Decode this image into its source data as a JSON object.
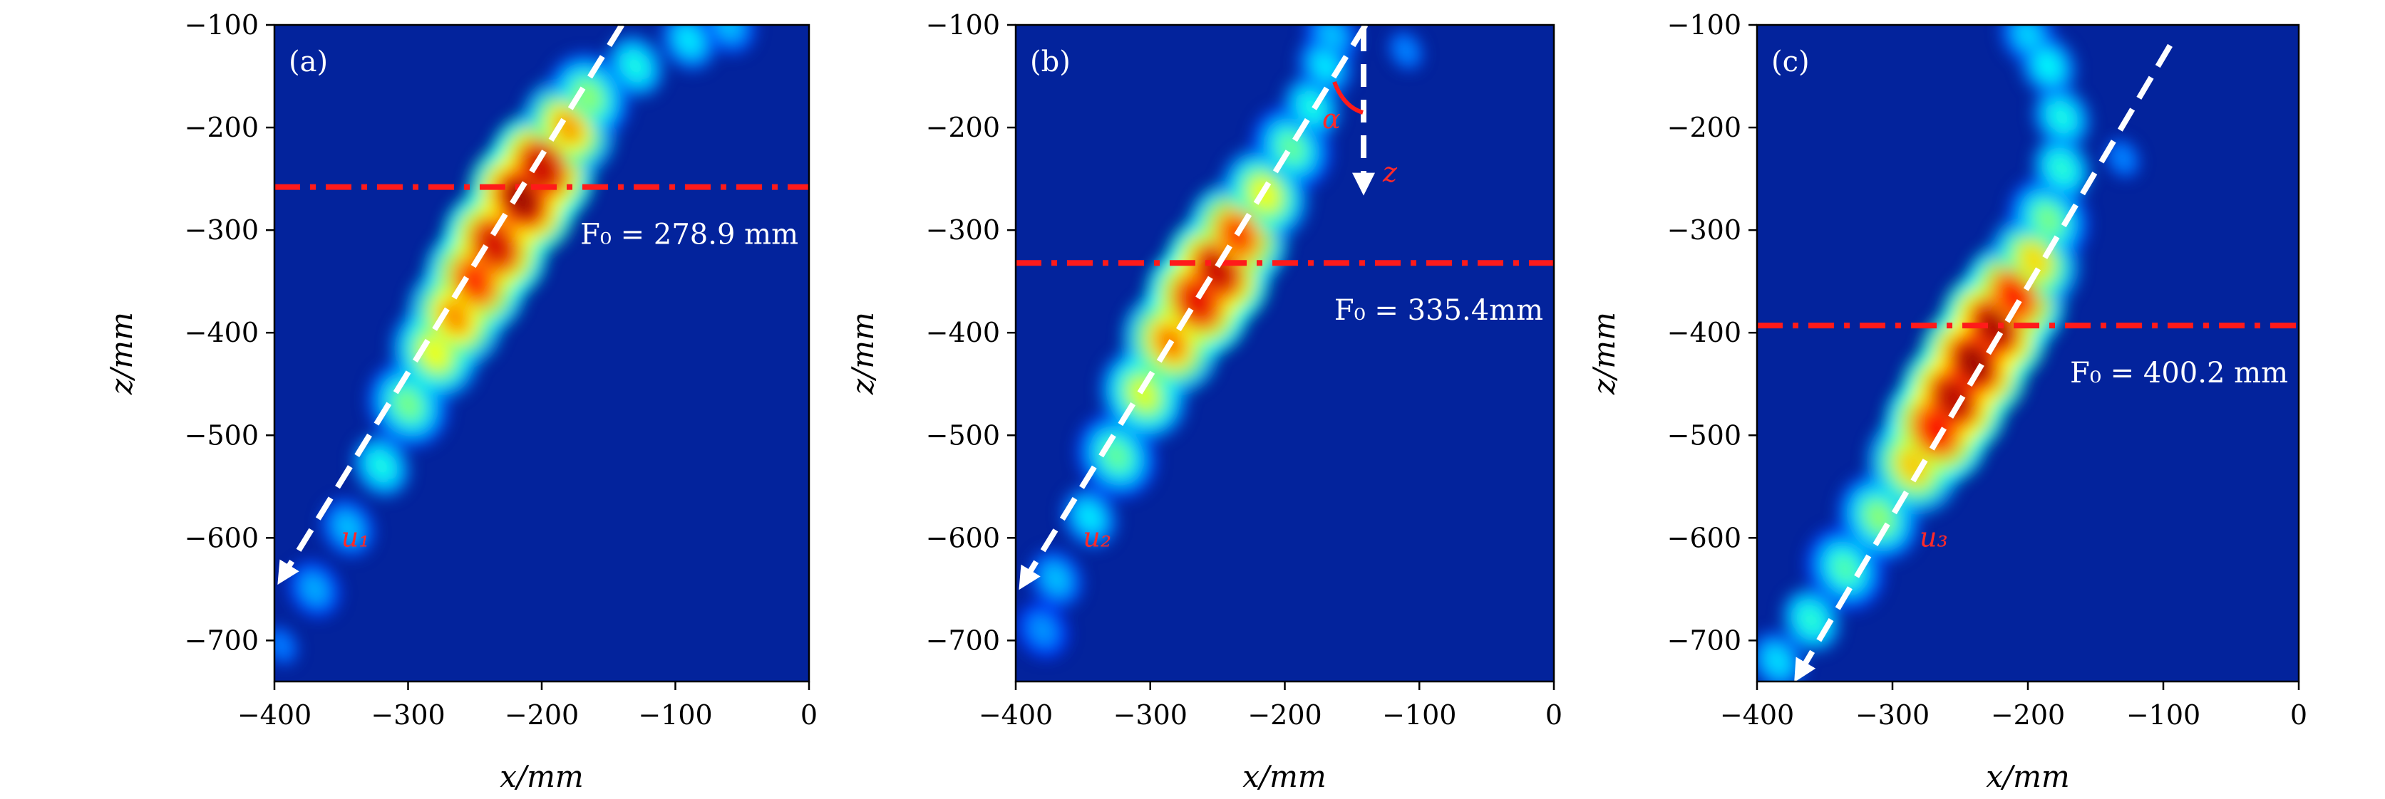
{
  "chart_data": [
    {
      "type": "heatmap",
      "panel_label": "(a)",
      "xlabel": "x/mm",
      "ylabel": "z/mm",
      "xlim": [
        -400,
        0
      ],
      "ylim": [
        -740,
        -100
      ],
      "xticks": [
        -400,
        -300,
        -200,
        -100,
        0
      ],
      "yticks": [
        -100,
        -200,
        -300,
        -400,
        -500,
        -600,
        -700
      ],
      "xtick_labels": [
        "−400",
        "−300",
        "−200",
        "−100",
        "0"
      ],
      "ytick_labels": [
        "−100",
        "−200",
        "−300",
        "−400",
        "−500",
        "−600",
        "−700"
      ],
      "focus_line_z": -258,
      "focus_label": "F₀ = 278.9 mm",
      "velocity_label": "u₁",
      "velocity_label_pos": [
        -350,
        -600
      ],
      "arrow": {
        "start": [
          -140,
          -100
        ],
        "end": [
          -395,
          -640
        ]
      },
      "plume": [
        {
          "x": -395,
          "z": -705,
          "intensity": 0.25
        },
        {
          "x": -370,
          "z": -650,
          "intensity": 0.3
        },
        {
          "x": -345,
          "z": -590,
          "intensity": 0.32
        },
        {
          "x": -320,
          "z": -530,
          "intensity": 0.4
        },
        {
          "x": -300,
          "z": -470,
          "intensity": 0.5
        },
        {
          "x": -280,
          "z": -420,
          "intensity": 0.62
        },
        {
          "x": -265,
          "z": -385,
          "intensity": 0.74
        },
        {
          "x": -250,
          "z": -350,
          "intensity": 0.84
        },
        {
          "x": -235,
          "z": -315,
          "intensity": 0.92
        },
        {
          "x": -215,
          "z": -270,
          "intensity": 0.98
        },
        {
          "x": -200,
          "z": -240,
          "intensity": 0.93
        },
        {
          "x": -180,
          "z": -200,
          "intensity": 0.72
        },
        {
          "x": -165,
          "z": -170,
          "intensity": 0.52
        },
        {
          "x": -130,
          "z": -140,
          "intensity": 0.4
        },
        {
          "x": -90,
          "z": -115,
          "intensity": 0.36
        },
        {
          "x": -60,
          "z": -100,
          "intensity": 0.32
        }
      ]
    },
    {
      "type": "heatmap",
      "panel_label": "(b)",
      "xlabel": "x/mm",
      "ylabel": "z/mm",
      "xlim": [
        -400,
        0
      ],
      "ylim": [
        -740,
        -100
      ],
      "xticks": [
        -400,
        -300,
        -200,
        -100,
        0
      ],
      "yticks": [
        -100,
        -200,
        -300,
        -400,
        -500,
        -600,
        -700
      ],
      "xtick_labels": [
        "−400",
        "−300",
        "−200",
        "−100",
        "0"
      ],
      "ytick_labels": [
        "−100",
        "−200",
        "−300",
        "−400",
        "−500",
        "−600",
        "−700"
      ],
      "focus_line_z": -332,
      "focus_label": "F₀ = 335.4mm",
      "velocity_label": "u₂",
      "velocity_label_pos": [
        -350,
        -600
      ],
      "arrow": {
        "start": [
          -140,
          -100
        ],
        "end": [
          -395,
          -645
        ]
      },
      "angle_label": "α",
      "z_axis_label": "z",
      "plume": [
        {
          "x": -380,
          "z": -690,
          "intensity": 0.28
        },
        {
          "x": -370,
          "z": -640,
          "intensity": 0.32
        },
        {
          "x": -345,
          "z": -580,
          "intensity": 0.36
        },
        {
          "x": -325,
          "z": -520,
          "intensity": 0.48
        },
        {
          "x": -305,
          "z": -460,
          "intensity": 0.6
        },
        {
          "x": -285,
          "z": -410,
          "intensity": 0.76
        },
        {
          "x": -265,
          "z": -370,
          "intensity": 0.9
        },
        {
          "x": -250,
          "z": -340,
          "intensity": 0.93
        },
        {
          "x": -235,
          "z": -305,
          "intensity": 0.82
        },
        {
          "x": -215,
          "z": -265,
          "intensity": 0.62
        },
        {
          "x": -195,
          "z": -220,
          "intensity": 0.48
        },
        {
          "x": -180,
          "z": -180,
          "intensity": 0.4
        },
        {
          "x": -170,
          "z": -140,
          "intensity": 0.36
        },
        {
          "x": -165,
          "z": -110,
          "intensity": 0.32
        },
        {
          "x": -110,
          "z": -125,
          "intensity": 0.26
        }
      ]
    },
    {
      "type": "heatmap",
      "panel_label": "(c)",
      "xlabel": "x/mm",
      "ylabel": "z/mm",
      "xlim": [
        -400,
        0
      ],
      "ylim": [
        -740,
        -100
      ],
      "xticks": [
        -400,
        -300,
        -200,
        -100,
        0
      ],
      "yticks": [
        -100,
        -200,
        -300,
        -400,
        -500,
        -600,
        -700
      ],
      "xtick_labels": [
        "−400",
        "−300",
        "−200",
        "−100",
        "0"
      ],
      "ytick_labels": [
        "−100",
        "−200",
        "−300",
        "−400",
        "−500",
        "−600",
        "−700"
      ],
      "focus_line_z": -393,
      "focus_label": "F₀ = 400.2 mm",
      "velocity_label": "u₃",
      "velocity_label_pos": [
        -280,
        -600
      ],
      "arrow": {
        "start": [
          -95,
          -120
        ],
        "end": [
          -370,
          -735
        ]
      },
      "plume": [
        {
          "x": -385,
          "z": -720,
          "intensity": 0.35
        },
        {
          "x": -360,
          "z": -680,
          "intensity": 0.42
        },
        {
          "x": -335,
          "z": -630,
          "intensity": 0.46
        },
        {
          "x": -310,
          "z": -580,
          "intensity": 0.52
        },
        {
          "x": -285,
          "z": -530,
          "intensity": 0.68
        },
        {
          "x": -268,
          "z": -495,
          "intensity": 0.88
        },
        {
          "x": -255,
          "z": -465,
          "intensity": 0.95
        },
        {
          "x": -240,
          "z": -430,
          "intensity": 0.98
        },
        {
          "x": -225,
          "z": -395,
          "intensity": 0.96
        },
        {
          "x": -210,
          "z": -365,
          "intensity": 0.86
        },
        {
          "x": -195,
          "z": -330,
          "intensity": 0.66
        },
        {
          "x": -185,
          "z": -290,
          "intensity": 0.5
        },
        {
          "x": -175,
          "z": -240,
          "intensity": 0.42
        },
        {
          "x": -175,
          "z": -190,
          "intensity": 0.4
        },
        {
          "x": -185,
          "z": -140,
          "intensity": 0.38
        },
        {
          "x": -200,
          "z": -110,
          "intensity": 0.34
        },
        {
          "x": -130,
          "z": -230,
          "intensity": 0.26
        }
      ]
    }
  ],
  "colors": {
    "background": "#03239c",
    "focus_line": "#ff1a1a",
    "arrow": "#ffffff",
    "frame": "#000000"
  }
}
